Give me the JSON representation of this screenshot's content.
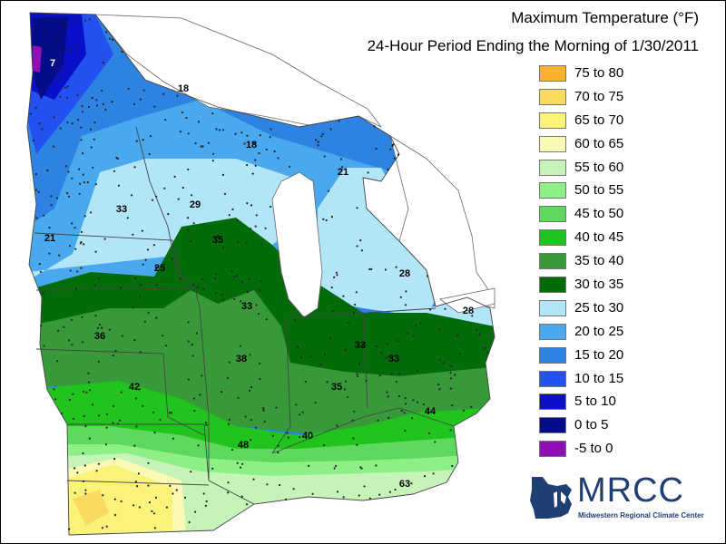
{
  "title": "Maximum Temperature (°F)",
  "subtitle": "24-Hour Period Ending the Morning of 1/30/2011",
  "legend": [
    {
      "label": "75 to 80",
      "color": "#F9B12E"
    },
    {
      "label": "70 to 75",
      "color": "#F8DA5E"
    },
    {
      "label": "65 to 70",
      "color": "#FBF27A"
    },
    {
      "label": "60 to 65",
      "color": "#FBF9B6"
    },
    {
      "label": "55 to 60",
      "color": "#C6F4B8"
    },
    {
      "label": "50 to 55",
      "color": "#8CF087"
    },
    {
      "label": "45 to 50",
      "color": "#5ED95E"
    },
    {
      "label": "40 to 45",
      "color": "#21C41D"
    },
    {
      "label": "35 to 40",
      "color": "#38993A"
    },
    {
      "label": "30 to 35",
      "color": "#046B0B"
    },
    {
      "label": "25 to 30",
      "color": "#B3E5F9"
    },
    {
      "label": "20 to 25",
      "color": "#49A8EE"
    },
    {
      "label": "15 to 20",
      "color": "#2D82E2"
    },
    {
      "label": "10 to 15",
      "color": "#2350F0"
    },
    {
      "label": "5 to 10",
      "color": "#0A10C8"
    },
    {
      "label": "0 to 5",
      "color": "#050C88"
    },
    {
      "label": "-5 to 0",
      "color": "#8F10B6"
    }
  ],
  "values": [
    "7",
    "18",
    "18",
    "21",
    "33",
    "29",
    "21",
    "35",
    "25",
    "28",
    "33",
    "28",
    "36",
    "38",
    "33",
    "33",
    "42",
    "35",
    "44",
    "40",
    "48",
    "63"
  ],
  "logo": {
    "word": "MRCC",
    "sub": "Midwestern Regional Climate Center"
  }
}
